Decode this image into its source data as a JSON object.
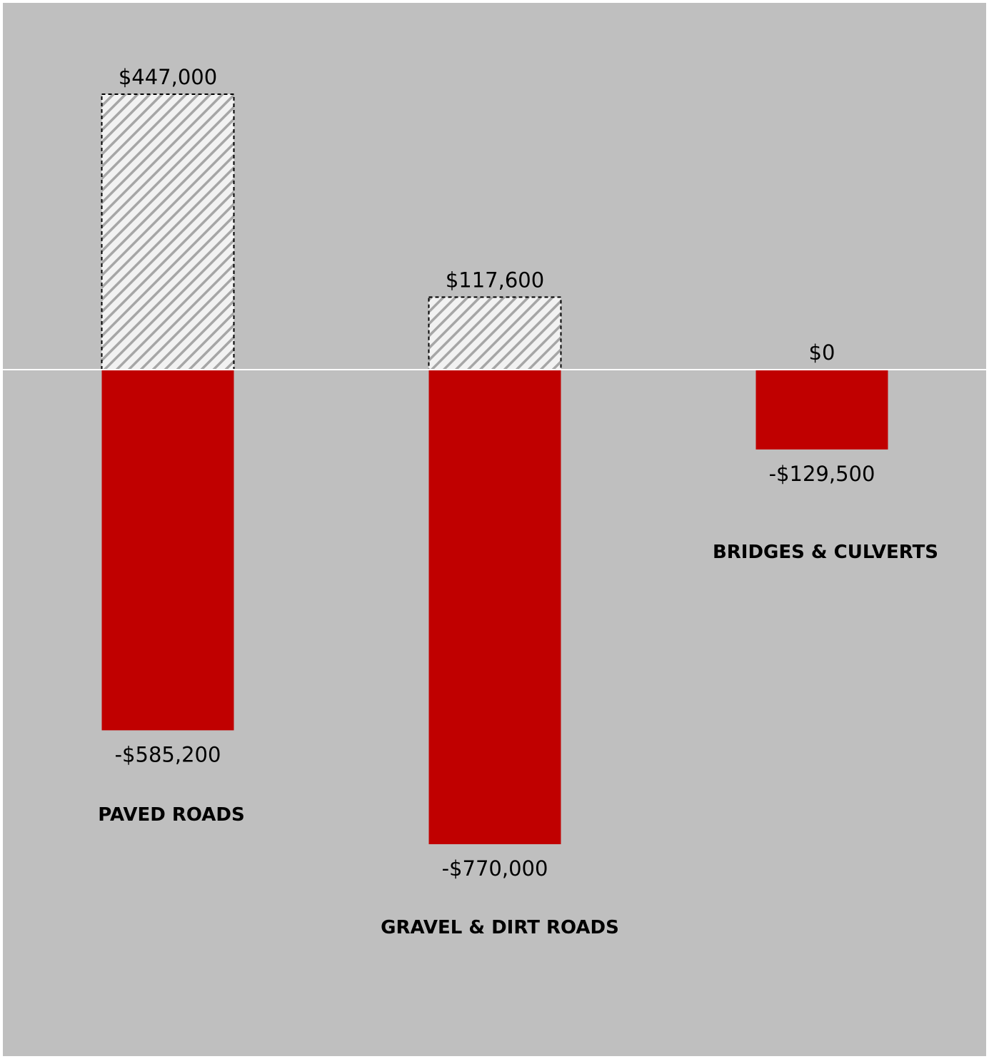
{
  "chart_data": {
    "type": "bar",
    "categories": [
      "PAVED ROADS",
      "GRAVEL & DIRT ROADS",
      "BRIDGES & CULVERTS"
    ],
    "series": [
      {
        "values": [
          447000,
          117600,
          0
        ],
        "labels": [
          "$447,000",
          "$117,600",
          "$0"
        ],
        "style": "hatched"
      },
      {
        "values": [
          -585200,
          -770000,
          -129500
        ],
        "labels": [
          "-$585,200",
          "-$770,000",
          "-$129,500"
        ],
        "style": "solid"
      }
    ],
    "title": "",
    "xlabel": "",
    "ylabel": "",
    "ylim": [
      -770000,
      447000
    ],
    "grid": false,
    "legend": "none"
  },
  "colors": {
    "background": "#bfbfbf",
    "negative_bar": "#c00000",
    "positive_bar_fill": "#f2f2f2",
    "positive_bar_hatch": "#a6a6a6",
    "positive_bar_border": "#000000",
    "zero_line": "#ffffff"
  }
}
